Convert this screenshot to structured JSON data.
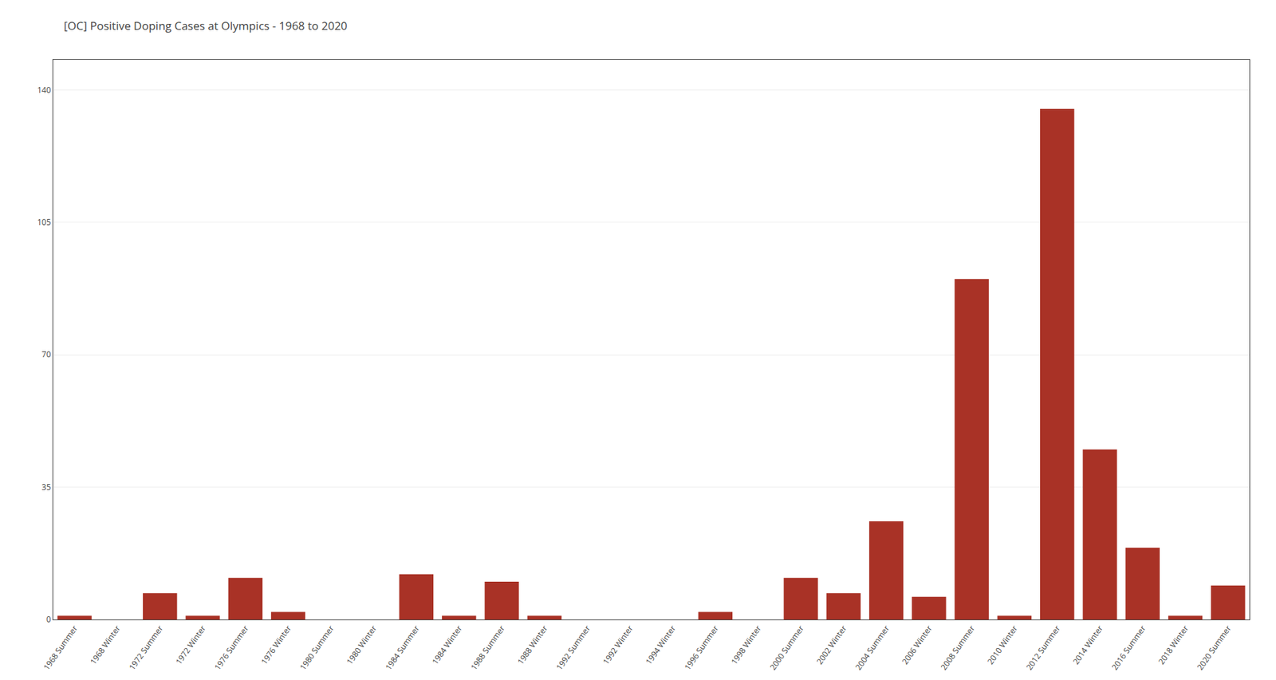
{
  "chart_data": {
    "type": "bar",
    "title": "[OC] Positive Doping Cases at Olympics - 1968 to 2020",
    "categories": [
      "1968 Summer",
      "1968 Winter",
      "1972 Summer",
      "1972 Winter",
      "1976 Summer",
      "1976 Winter",
      "1980 Summer",
      "1980 Winter",
      "1984 Summer",
      "1984 Winter",
      "1988 Summer",
      "1988 Winter",
      "1992 Summer",
      "1992 Winter",
      "1994 Winter",
      "1996 Summer",
      "1998 Winter",
      "2000 Summer",
      "2002 Winter",
      "2004 Summer",
      "2006 Winter",
      "2008 Summer",
      "2010 Winter",
      "2012 Summer",
      "2014 Winter",
      "2016 Summer",
      "2018 Winter",
      "2020 Summer"
    ],
    "values": [
      1,
      0,
      7,
      1,
      11,
      2,
      0,
      0,
      12,
      1,
      10,
      1,
      0,
      0,
      0,
      2,
      0,
      11,
      7,
      26,
      6,
      90,
      1,
      135,
      45,
      19,
      1,
      9
    ],
    "color": "#A93226",
    "ylim": [
      0,
      148
    ],
    "yticks": [
      0,
      35,
      70,
      105,
      140
    ],
    "grid": true
  }
}
